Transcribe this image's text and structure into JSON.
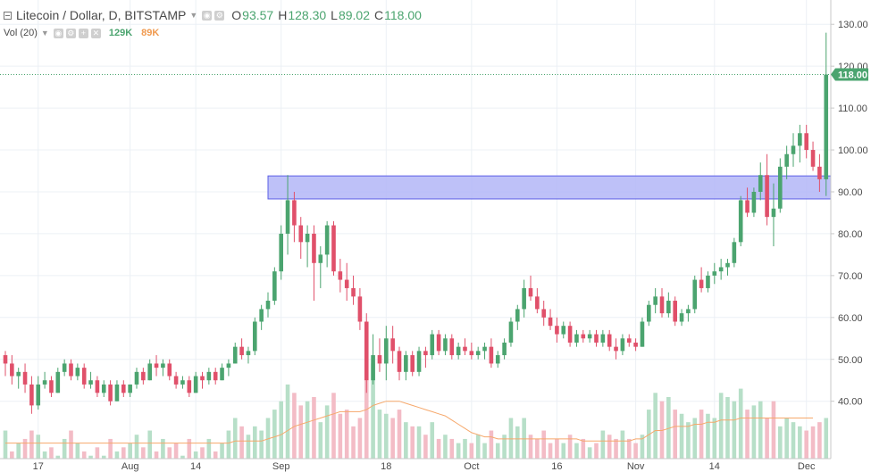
{
  "header": {
    "symbol": "Litecoin / Dollar, D, BITSTAMP",
    "open_label": "O",
    "open_value": "93.57",
    "high_label": "H",
    "high_value": "128.30",
    "low_label": "L",
    "low_value": "89.02",
    "close_label": "C",
    "close_value": "118.00"
  },
  "volume_indicator": {
    "label": "Vol (20)",
    "value1": "129K",
    "value2": "89K"
  },
  "price_tag": "118.00",
  "colors": {
    "up": "#4ba46f",
    "down": "#e0506a",
    "up_vol": "#b7dfc8",
    "down_vol": "#f3bcc6",
    "vol_ma": "#f6a86b",
    "zone_fill": "#b3b6f7",
    "zone_stroke": "#5b5fe6",
    "grid": "#ecf0f5"
  },
  "chart_data": {
    "type": "candlestick",
    "title": "Litecoin / Dollar, D, BITSTAMP",
    "y_ticks": [
      "40.00",
      "50.00",
      "60.00",
      "70.00",
      "80.00",
      "90.00",
      "100.00",
      "110.00",
      "120.00",
      "130.00"
    ],
    "y_tick_values": [
      40,
      50,
      60,
      70,
      80,
      90,
      100,
      110,
      120,
      130
    ],
    "ylim": [
      26.3,
      135.8
    ],
    "x_ticks": [
      "17",
      "Aug",
      "14",
      "Sep",
      "18",
      "Oct",
      "16",
      "Nov",
      "14",
      "Dec"
    ],
    "x_tick_bar_index": [
      5,
      19,
      29,
      42,
      58,
      71,
      84,
      96,
      108,
      122
    ],
    "zone": {
      "y_low": 88.3,
      "y_high": 93.8,
      "from_bar": 40,
      "to_extent": "right-edge"
    },
    "last_price": 118.0,
    "candles": [
      [
        51,
        52,
        46,
        49
      ],
      [
        49,
        51,
        44,
        46
      ],
      [
        46,
        48,
        43,
        47
      ],
      [
        47,
        49,
        42,
        44
      ],
      [
        44,
        46,
        37,
        39
      ],
      [
        39,
        46,
        38,
        44
      ],
      [
        44,
        47,
        43,
        45
      ],
      [
        45,
        46,
        41,
        42
      ],
      [
        42,
        48,
        42,
        47
      ],
      [
        47,
        50,
        46,
        49
      ],
      [
        49,
        50,
        45,
        46
      ],
      [
        46,
        49,
        45,
        48
      ],
      [
        48,
        49,
        43,
        44
      ],
      [
        44,
        47,
        43,
        45
      ],
      [
        45,
        46,
        41,
        42
      ],
      [
        42,
        45,
        41,
        44
      ],
      [
        44,
        45,
        39,
        40
      ],
      [
        40,
        45,
        40,
        44
      ],
      [
        44,
        45,
        41,
        42
      ],
      [
        42,
        44,
        41,
        44
      ],
      [
        44,
        48,
        43,
        47
      ],
      [
        47,
        48,
        44,
        45
      ],
      [
        45,
        50,
        45,
        49
      ],
      [
        49,
        51,
        46,
        48
      ],
      [
        48,
        50,
        46,
        49
      ],
      [
        49,
        50,
        45,
        46
      ],
      [
        46,
        47,
        43,
        44
      ],
      [
        44,
        46,
        43,
        45
      ],
      [
        45,
        46,
        41,
        42
      ],
      [
        42,
        47,
        42,
        46
      ],
      [
        46,
        47,
        43,
        45
      ],
      [
        45,
        48,
        44,
        47
      ],
      [
        47,
        48,
        44,
        45
      ],
      [
        45,
        49,
        45,
        48
      ],
      [
        48,
        50,
        46,
        49
      ],
      [
        49,
        54,
        49,
        53
      ],
      [
        53,
        55,
        50,
        51
      ],
      [
        51,
        53,
        49,
        52
      ],
      [
        52,
        60,
        51,
        59
      ],
      [
        59,
        63,
        57,
        62
      ],
      [
        62,
        66,
        60,
        64
      ],
      [
        64,
        72,
        63,
        71
      ],
      [
        71,
        82,
        69,
        80
      ],
      [
        80,
        94,
        75,
        88
      ],
      [
        88,
        90,
        78,
        82
      ],
      [
        82,
        84,
        74,
        78
      ],
      [
        78,
        82,
        72,
        80
      ],
      [
        80,
        82,
        64,
        73
      ],
      [
        73,
        77,
        67,
        75
      ],
      [
        75,
        83,
        72,
        82
      ],
      [
        82,
        83,
        70,
        71
      ],
      [
        71,
        74,
        66,
        69
      ],
      [
        69,
        73,
        64,
        67
      ],
      [
        67,
        70,
        63,
        65
      ],
      [
        65,
        67,
        57,
        59
      ],
      [
        59,
        61,
        42,
        45
      ],
      [
        45,
        56,
        44,
        51
      ],
      [
        51,
        55,
        47,
        49
      ],
      [
        49,
        58,
        45,
        55
      ],
      [
        55,
        58,
        49,
        52
      ],
      [
        52,
        53,
        45,
        47
      ],
      [
        47,
        52,
        45,
        51
      ],
      [
        51,
        52,
        46,
        47
      ],
      [
        47,
        53,
        46,
        52
      ],
      [
        52,
        53,
        48,
        51
      ],
      [
        51,
        57,
        50,
        56
      ],
      [
        56,
        57,
        51,
        52
      ],
      [
        52,
        56,
        51,
        55
      ],
      [
        55,
        56,
        50,
        51
      ],
      [
        51,
        54,
        50,
        53
      ],
      [
        53,
        55,
        51,
        52
      ],
      [
        52,
        54,
        50,
        51
      ],
      [
        51,
        53,
        50,
        52
      ],
      [
        52,
        54,
        50,
        53
      ],
      [
        53,
        55,
        48,
        49
      ],
      [
        49,
        52,
        48,
        51
      ],
      [
        51,
        55,
        50,
        54
      ],
      [
        54,
        60,
        53,
        59
      ],
      [
        59,
        63,
        57,
        62
      ],
      [
        62,
        69,
        60,
        67
      ],
      [
        67,
        70,
        64,
        65
      ],
      [
        65,
        67,
        61,
        62
      ],
      [
        62,
        64,
        58,
        60
      ],
      [
        60,
        62,
        57,
        58
      ],
      [
        58,
        60,
        54,
        56
      ],
      [
        56,
        59,
        55,
        58
      ],
      [
        58,
        59,
        53,
        54
      ],
      [
        54,
        57,
        53,
        56
      ],
      [
        56,
        57,
        54,
        55
      ],
      [
        55,
        57,
        54,
        56
      ],
      [
        56,
        57,
        53,
        54
      ],
      [
        54,
        57,
        53,
        56
      ],
      [
        56,
        57,
        52,
        53
      ],
      [
        53,
        55,
        50,
        52
      ],
      [
        52,
        56,
        51,
        55
      ],
      [
        55,
        56,
        53,
        54
      ],
      [
        54,
        55,
        52,
        53
      ],
      [
        53,
        60,
        53,
        59
      ],
      [
        59,
        64,
        58,
        63
      ],
      [
        63,
        67,
        61,
        65
      ],
      [
        65,
        67,
        60,
        61
      ],
      [
        61,
        66,
        60,
        64
      ],
      [
        64,
        65,
        58,
        59
      ],
      [
        59,
        62,
        58,
        61
      ],
      [
        61,
        63,
        59,
        62
      ],
      [
        62,
        70,
        61,
        69
      ],
      [
        69,
        72,
        66,
        67
      ],
      [
        67,
        71,
        66,
        70
      ],
      [
        70,
        73,
        68,
        71
      ],
      [
        71,
        74,
        69,
        72
      ],
      [
        72,
        74,
        70,
        73
      ],
      [
        73,
        79,
        72,
        78
      ],
      [
        78,
        89,
        77,
        88
      ],
      [
        88,
        91,
        84,
        85
      ],
      [
        85,
        91,
        84,
        90
      ],
      [
        90,
        97,
        88,
        94
      ],
      [
        94,
        99,
        82,
        84
      ],
      [
        84,
        92,
        77,
        86
      ],
      [
        86,
        98,
        85,
        96
      ],
      [
        96,
        101,
        93,
        99
      ],
      [
        99,
        104,
        96,
        101
      ],
      [
        101,
        106,
        97,
        104
      ],
      [
        104,
        106,
        98,
        100
      ],
      [
        100,
        102,
        95,
        96
      ],
      [
        96,
        99,
        90,
        93
      ],
      [
        93,
        128,
        89,
        118
      ]
    ],
    "volume": [
      [
        33,
        0
      ],
      [
        28,
        1
      ],
      [
        30,
        0
      ],
      [
        31,
        1
      ],
      [
        33,
        1
      ],
      [
        32,
        0
      ],
      [
        28,
        0
      ],
      [
        29,
        1
      ],
      [
        27,
        0
      ],
      [
        31,
        0
      ],
      [
        33,
        1
      ],
      [
        30,
        0
      ],
      [
        28,
        1
      ],
      [
        27,
        0
      ],
      [
        29,
        1
      ],
      [
        27,
        0
      ],
      [
        31,
        1
      ],
      [
        28,
        0
      ],
      [
        29,
        1
      ],
      [
        30,
        0
      ],
      [
        32,
        0
      ],
      [
        29,
        1
      ],
      [
        33,
        0
      ],
      [
        28,
        1
      ],
      [
        31,
        0
      ],
      [
        29,
        1
      ],
      [
        30,
        1
      ],
      [
        27,
        0
      ],
      [
        31,
        1
      ],
      [
        28,
        0
      ],
      [
        29,
        1
      ],
      [
        31,
        0
      ],
      [
        28,
        1
      ],
      [
        30,
        0
      ],
      [
        33,
        0
      ],
      [
        36,
        0
      ],
      [
        34,
        1
      ],
      [
        32,
        0
      ],
      [
        34,
        0
      ],
      [
        33,
        0
      ],
      [
        36,
        0
      ],
      [
        38,
        0
      ],
      [
        40,
        0
      ],
      [
        44,
        0
      ],
      [
        42,
        1
      ],
      [
        39,
        1
      ],
      [
        40,
        0
      ],
      [
        41,
        1
      ],
      [
        35,
        0
      ],
      [
        39,
        0
      ],
      [
        42,
        1
      ],
      [
        37,
        1
      ],
      [
        38,
        1
      ],
      [
        34,
        1
      ],
      [
        36,
        1
      ],
      [
        45,
        1
      ],
      [
        49,
        0
      ],
      [
        38,
        0
      ],
      [
        37,
        0
      ],
      [
        36,
        1
      ],
      [
        38,
        1
      ],
      [
        35,
        0
      ],
      [
        34,
        1
      ],
      [
        34,
        0
      ],
      [
        32,
        1
      ],
      [
        35,
        0
      ],
      [
        31,
        1
      ],
      [
        32,
        0
      ],
      [
        31,
        1
      ],
      [
        30,
        0
      ],
      [
        31,
        0
      ],
      [
        30,
        1
      ],
      [
        32,
        0
      ],
      [
        30,
        0
      ],
      [
        33,
        1
      ],
      [
        30,
        0
      ],
      [
        32,
        0
      ],
      [
        36,
        0
      ],
      [
        34,
        0
      ],
      [
        36,
        0
      ],
      [
        32,
        1
      ],
      [
        31,
        1
      ],
      [
        33,
        1
      ],
      [
        30,
        1
      ],
      [
        31,
        1
      ],
      [
        30,
        0
      ],
      [
        32,
        1
      ],
      [
        30,
        0
      ],
      [
        31,
        1
      ],
      [
        29,
        0
      ],
      [
        30,
        1
      ],
      [
        33,
        0
      ],
      [
        32,
        1
      ],
      [
        31,
        1
      ],
      [
        33,
        0
      ],
      [
        31,
        1
      ],
      [
        30,
        1
      ],
      [
        32,
        0
      ],
      [
        38,
        0
      ],
      [
        42,
        0
      ],
      [
        40,
        1
      ],
      [
        41,
        0
      ],
      [
        38,
        1
      ],
      [
        37,
        0
      ],
      [
        35,
        0
      ],
      [
        36,
        0
      ],
      [
        38,
        1
      ],
      [
        37,
        0
      ],
      [
        36,
        0
      ],
      [
        42,
        0
      ],
      [
        41,
        0
      ],
      [
        40,
        0
      ],
      [
        43,
        0
      ],
      [
        38,
        1
      ],
      [
        39,
        0
      ],
      [
        40,
        0
      ],
      [
        36,
        1
      ],
      [
        40,
        1
      ],
      [
        34,
        0
      ],
      [
        36,
        0
      ],
      [
        35,
        0
      ],
      [
        34,
        0
      ],
      [
        33,
        1
      ],
      [
        34,
        1
      ],
      [
        35,
        1
      ],
      [
        36,
        0
      ]
    ],
    "volume_ma": [
      30,
      30,
      30,
      30,
      30,
      30,
      30,
      30,
      30,
      30,
      30,
      30,
      30,
      30,
      30,
      30,
      30,
      30,
      30,
      30,
      30,
      30,
      30,
      30,
      30,
      30,
      30,
      30,
      30,
      30,
      30,
      30,
      30,
      30,
      30,
      30.5,
      30.5,
      30.5,
      30.5,
      30.5,
      31,
      31.5,
      32,
      33,
      34,
      34.5,
      35,
      35.5,
      36,
      36.5,
      37,
      37.5,
      37.5,
      37.5,
      37.5,
      38,
      39,
      39.5,
      40,
      40,
      40,
      39.5,
      39,
      38.5,
      38,
      37.5,
      37,
      36.5,
      35.5,
      34.5,
      33.5,
      32.5,
      32,
      31.5,
      31.5,
      31,
      31,
      31,
      31,
      31,
      31,
      31,
      31,
      31,
      31,
      31,
      31,
      31,
      30.5,
      30.5,
      30.5,
      30.5,
      30.5,
      30.5,
      30.5,
      30.5,
      31,
      31,
      32,
      33,
      33,
      33.5,
      34,
      34,
      34,
      34.5,
      34.5,
      35,
      35,
      35.5,
      35.5,
      35.5,
      36,
      36,
      36,
      36,
      36,
      36,
      36,
      36,
      36,
      36,
      36,
      36
    ]
  }
}
